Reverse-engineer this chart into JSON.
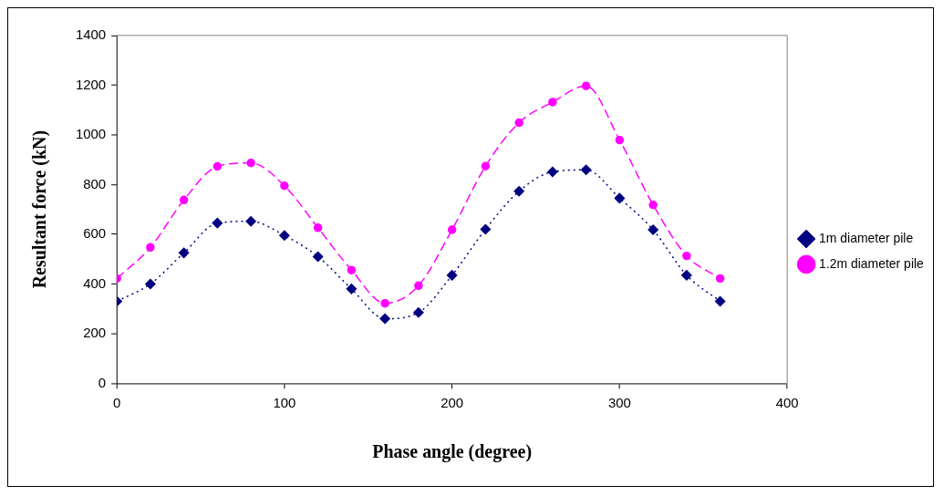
{
  "chart_data": {
    "type": "line",
    "xlabel": "Phase angle (degree)",
    "ylabel": "Resultant force (kN)",
    "x": [
      0,
      20,
      40,
      60,
      80,
      100,
      120,
      140,
      160,
      180,
      200,
      220,
      240,
      260,
      280,
      300,
      320,
      340,
      360
    ],
    "series": [
      {
        "name": "1m diameter pile",
        "color": "#000080",
        "marker": "diamond",
        "line_style": "dotted",
        "values": [
          330,
          400,
          525,
          645,
          652,
          595,
          510,
          380,
          260,
          285,
          435,
          620,
          773,
          851,
          859,
          745,
          618,
          435,
          330
        ]
      },
      {
        "name": "1.2m diameter pile",
        "color": "#ff00ff",
        "marker": "circle",
        "line_style": "dashed",
        "values": [
          422,
          547,
          738,
          873,
          887,
          795,
          626,
          456,
          322,
          393,
          618,
          874,
          1049,
          1132,
          1197,
          979,
          718,
          513,
          422
        ]
      }
    ],
    "xlim": [
      0,
      400
    ],
    "xticks": [
      0,
      100,
      200,
      300,
      400
    ],
    "ylim": [
      0,
      1400
    ],
    "yticks": [
      0,
      200,
      400,
      600,
      800,
      1000,
      1200,
      1400
    ],
    "grid": false,
    "legend": "right"
  }
}
